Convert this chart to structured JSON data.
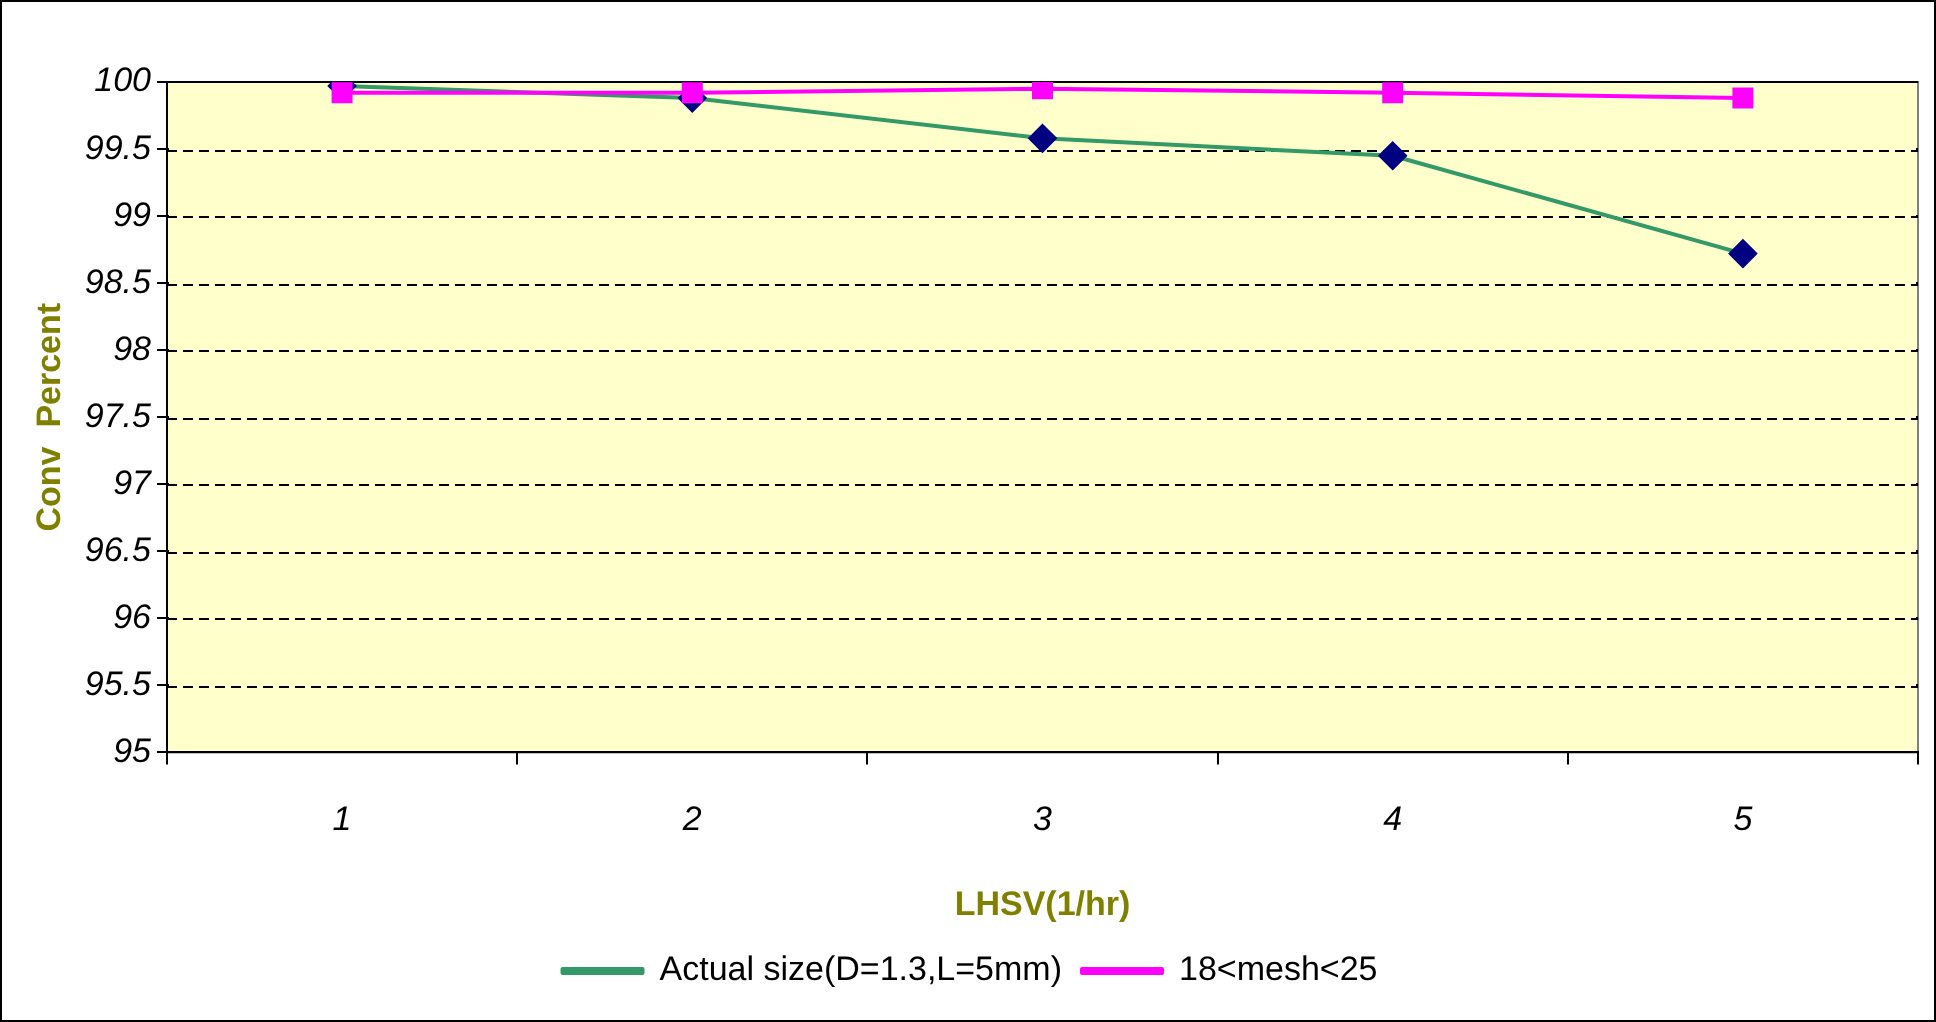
{
  "chart_data": {
    "type": "line",
    "xlabel": "LHSV(1/hr)",
    "ylabel": "Conv  Percent",
    "categories": [
      "1",
      "2",
      "3",
      "4",
      "5"
    ],
    "series": [
      {
        "name": "Actual size(D=1.3,L=5mm)",
        "color": "#339966",
        "colors": [
          "#000080",
          "#000080",
          "#000080",
          "#000080",
          "#000080"
        ],
        "values": [
          99.97,
          99.88,
          99.58,
          99.45,
          98.72
        ],
        "marker": "diamond"
      },
      {
        "name": "18<mesh<25",
        "color": "#ff00ff",
        "values": [
          99.92,
          99.92,
          99.95,
          99.92,
          99.88
        ],
        "marker": "square"
      }
    ],
    "ylim": [
      95,
      100
    ],
    "yticks": [
      95,
      95.5,
      96,
      96.5,
      97,
      97.5,
      98,
      98.5,
      99,
      99.5,
      100
    ],
    "grid": "y",
    "legend": "bottom",
    "line_style": "solid"
  }
}
